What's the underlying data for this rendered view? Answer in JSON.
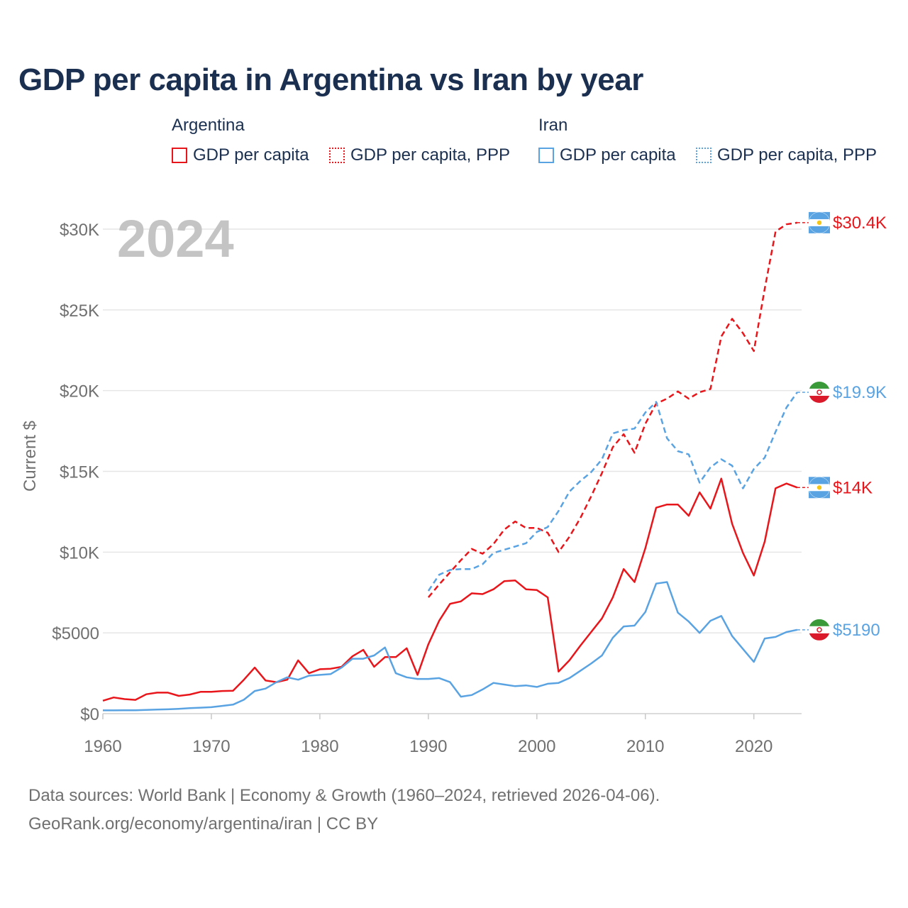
{
  "title": "GDP per capita in Argentina vs Iran by year",
  "year_watermark": "2024",
  "legend": {
    "groups": [
      {
        "country": "Argentina",
        "color": "#e8161b",
        "items": [
          {
            "label": "GDP per capita",
            "style": "solid"
          },
          {
            "label": "GDP per capita, PPP",
            "style": "dashed"
          }
        ]
      },
      {
        "country": "Iran",
        "color": "#5aa3e2",
        "items": [
          {
            "label": "GDP per capita",
            "style": "solid"
          },
          {
            "label": "GDP per capita, PPP",
            "style": "dashed"
          }
        ]
      }
    ]
  },
  "footer": {
    "line1": "Data sources: World Bank | Economy & Growth (1960–2024, retrieved 2026-04-06).",
    "line2": "GeoRank.org/economy/argentina/iran | CC BY"
  },
  "chart_data": {
    "type": "line",
    "title": "GDP per capita in Argentina vs Iran by year",
    "xlabel": "",
    "ylabel": "Current $",
    "xlim": [
      1960,
      2024
    ],
    "ylim": [
      0,
      30000
    ],
    "x_ticks": [
      1960,
      1970,
      1980,
      1990,
      2000,
      2010,
      2020
    ],
    "x_tick_labels": [
      "1960",
      "1970",
      "1980",
      "1990",
      "2000",
      "2010",
      "2020"
    ],
    "y_ticks": [
      0,
      5000,
      10000,
      15000,
      20000,
      25000,
      30000
    ],
    "y_tick_labels": [
      "$0",
      "$5000",
      "$10K",
      "$15K",
      "$20K",
      "$25K",
      "$30K"
    ],
    "grid": true,
    "series": [
      {
        "name": "Argentina GDP per capita",
        "country": "Argentina",
        "style": "solid",
        "color": "#e8161b",
        "end_label": "$14K",
        "x": [
          1960,
          1961,
          1962,
          1963,
          1964,
          1965,
          1966,
          1967,
          1968,
          1969,
          1970,
          1971,
          1972,
          1973,
          1974,
          1975,
          1976,
          1977,
          1978,
          1979,
          1980,
          1981,
          1982,
          1983,
          1984,
          1985,
          1986,
          1987,
          1988,
          1989,
          1990,
          1991,
          1992,
          1993,
          1994,
          1995,
          1996,
          1997,
          1998,
          1999,
          2000,
          2001,
          2002,
          2003,
          2004,
          2005,
          2006,
          2007,
          2008,
          2009,
          2010,
          2011,
          2012,
          2013,
          2014,
          2015,
          2016,
          2017,
          2018,
          2019,
          2020,
          2021,
          2022,
          2023,
          2024
        ],
        "values": [
          800,
          1000,
          900,
          850,
          1200,
          1300,
          1300,
          1100,
          1180,
          1350,
          1350,
          1400,
          1420,
          2100,
          2850,
          2050,
          1950,
          2100,
          3300,
          2500,
          2750,
          2780,
          2900,
          3550,
          3950,
          2900,
          3500,
          3500,
          4050,
          2400,
          4300,
          5750,
          6800,
          6950,
          7450,
          7400,
          7700,
          8200,
          8250,
          7700,
          7650,
          7200,
          2600,
          3300,
          4200,
          5050,
          5900,
          7200,
          8950,
          8150,
          10250,
          12750,
          12950,
          12950,
          12250,
          13700,
          12700,
          14550,
          11750,
          9950,
          8550,
          10650,
          13950,
          14250,
          14000
        ]
      },
      {
        "name": "Argentina GDP per capita, PPP",
        "country": "Argentina",
        "style": "dashed",
        "color": "#e8161b",
        "end_label": "$30.4K",
        "x": [
          1990,
          1991,
          1992,
          1993,
          1994,
          1995,
          1996,
          1997,
          1998,
          1999,
          2000,
          2001,
          2002,
          2003,
          2004,
          2005,
          2006,
          2007,
          2008,
          2009,
          2010,
          2011,
          2012,
          2013,
          2014,
          2015,
          2016,
          2017,
          2018,
          2019,
          2020,
          2021,
          2022,
          2023,
          2024
        ],
        "values": [
          7200,
          8000,
          8750,
          9500,
          10200,
          9900,
          10500,
          11400,
          11900,
          11500,
          11500,
          11200,
          10000,
          10950,
          12100,
          13450,
          14900,
          16500,
          17300,
          16150,
          17950,
          19200,
          19500,
          19950,
          19500,
          19900,
          20100,
          23350,
          24450,
          23550,
          22450,
          26300,
          29850,
          30300,
          30400
        ]
      },
      {
        "name": "Iran GDP per capita",
        "country": "Iran",
        "style": "solid",
        "color": "#5aa3e2",
        "end_label": "$5190",
        "x": [
          1960,
          1961,
          1962,
          1963,
          1964,
          1965,
          1966,
          1967,
          1968,
          1969,
          1970,
          1971,
          1972,
          1973,
          1974,
          1975,
          1976,
          1977,
          1978,
          1979,
          1980,
          1981,
          1982,
          1983,
          1984,
          1985,
          1986,
          1987,
          1988,
          1989,
          1990,
          1991,
          1992,
          1993,
          1994,
          1995,
          1996,
          1997,
          1998,
          1999,
          2000,
          2001,
          2002,
          2003,
          2004,
          2005,
          2006,
          2007,
          2008,
          2009,
          2010,
          2011,
          2012,
          2013,
          2014,
          2015,
          2016,
          2017,
          2018,
          2019,
          2020,
          2021,
          2022,
          2023,
          2024
        ],
        "values": [
          200,
          200,
          210,
          210,
          230,
          250,
          270,
          300,
          340,
          370,
          400,
          480,
          560,
          860,
          1400,
          1550,
          1950,
          2250,
          2100,
          2350,
          2400,
          2450,
          2850,
          3400,
          3400,
          3600,
          4100,
          2500,
          2250,
          2150,
          2150,
          2200,
          1950,
          1050,
          1150,
          1500,
          1900,
          1800,
          1700,
          1750,
          1650,
          1850,
          1900,
          2200,
          2650,
          3100,
          3600,
          4700,
          5400,
          5450,
          6300,
          8050,
          8150,
          6250,
          5700,
          5000,
          5750,
          6050,
          4800,
          4000,
          3200,
          4650,
          4750,
          5050,
          5190
        ]
      },
      {
        "name": "Iran GDP per capita, PPP",
        "country": "Iran",
        "style": "dashed",
        "color": "#5aa3e2",
        "end_label": "$19.9K",
        "x": [
          1990,
          1991,
          1992,
          1993,
          1994,
          1995,
          1996,
          1997,
          1998,
          1999,
          2000,
          2001,
          2002,
          2003,
          2004,
          2005,
          2006,
          2007,
          2008,
          2009,
          2010,
          2011,
          2012,
          2013,
          2014,
          2015,
          2016,
          2017,
          2018,
          2019,
          2020,
          2021,
          2022,
          2023,
          2024
        ],
        "values": [
          7600,
          8600,
          8900,
          8950,
          8950,
          9250,
          9950,
          10150,
          10350,
          10550,
          11250,
          11550,
          12550,
          13750,
          14400,
          14950,
          15750,
          17350,
          17550,
          17650,
          18650,
          19300,
          17050,
          16250,
          16050,
          14300,
          15250,
          15750,
          15350,
          13950,
          15150,
          15850,
          17450,
          18950,
          19900
        ]
      }
    ]
  }
}
